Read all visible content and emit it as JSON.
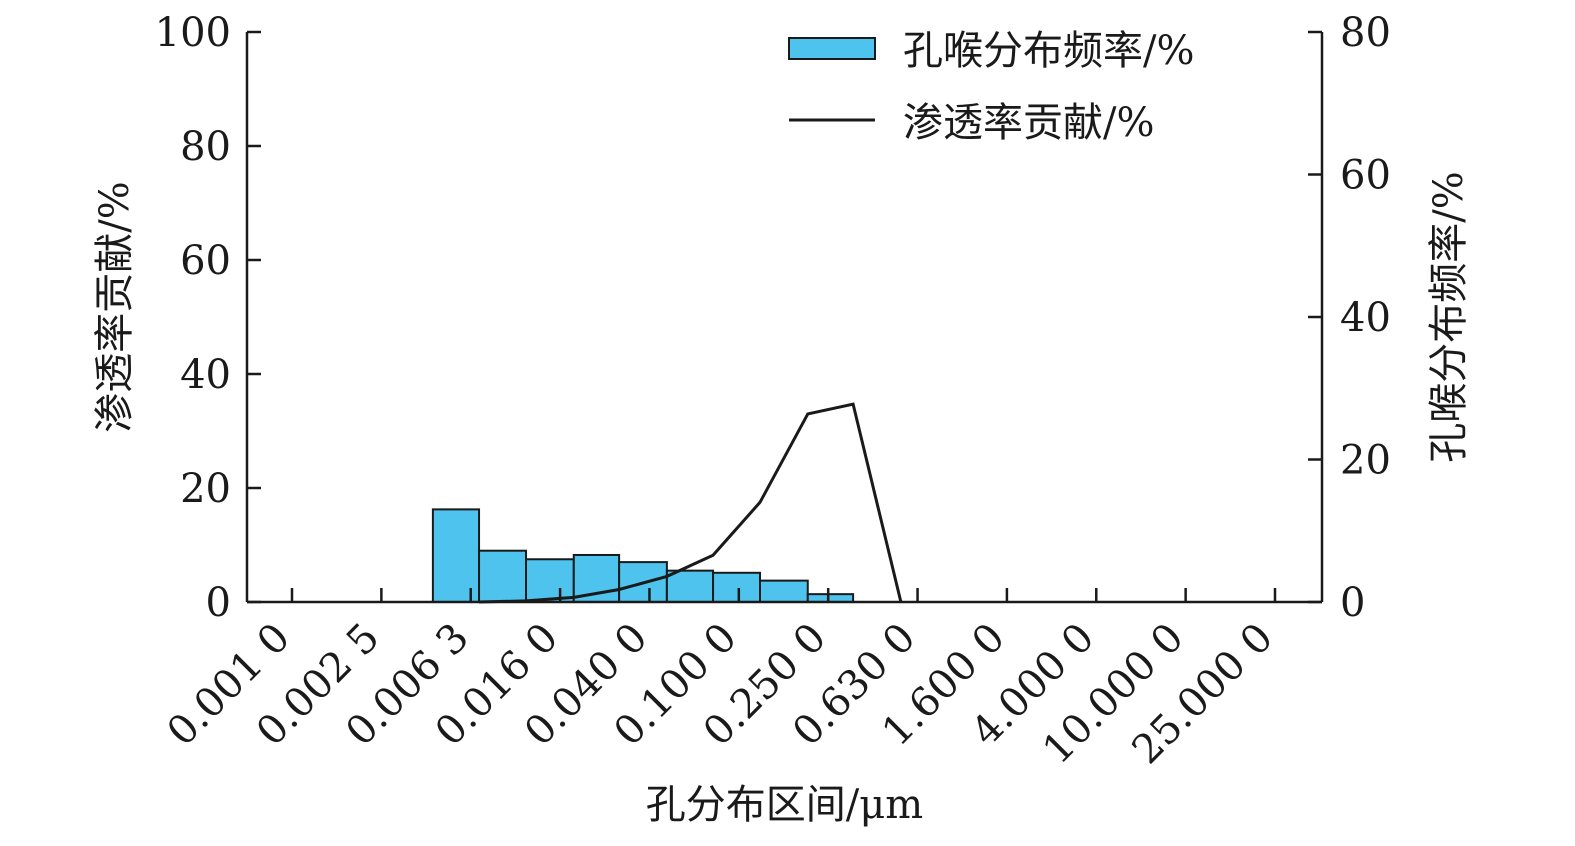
{
  "chart_data": {
    "type": "bar",
    "title": "",
    "xlabel": "孔分布区间/μm",
    "ylabel_left": "渗透率贡献/%",
    "ylabel_right": "孔喉分布频率/%",
    "categories": [
      "0.001 0",
      "0.002 5",
      "0.006 3",
      "0.016 0",
      "0.040 0",
      "0.100 0",
      "0.250 0",
      "0.630 0",
      "1.600 0",
      "4.000 0",
      "10.000 0",
      "25.000 0"
    ],
    "ylim_left": [
      0,
      100
    ],
    "yticks_left": [
      0,
      20,
      40,
      60,
      80,
      100
    ],
    "ylim_right": [
      0,
      80
    ],
    "yticks_right": [
      0,
      20,
      40,
      60,
      80
    ],
    "grid": false,
    "legend_position": "top-right",
    "series": [
      {
        "name": "孔喉分布频率/%",
        "type": "bar",
        "axis": "right",
        "color": "#4dc3ee",
        "bins": [
          {
            "from": 0.004,
            "to": 0.0063,
            "value": 13.0
          },
          {
            "from": 0.0063,
            "to": 0.01,
            "value": 7.2
          },
          {
            "from": 0.01,
            "to": 0.016,
            "value": 6.0
          },
          {
            "from": 0.016,
            "to": 0.025,
            "value": 6.6
          },
          {
            "from": 0.025,
            "to": 0.04,
            "value": 5.6
          },
          {
            "from": 0.04,
            "to": 0.063,
            "value": 4.4
          },
          {
            "from": 0.063,
            "to": 0.1,
            "value": 4.1
          },
          {
            "from": 0.1,
            "to": 0.16,
            "value": 3.0
          },
          {
            "from": 0.16,
            "to": 0.25,
            "value": 1.1
          }
        ]
      },
      {
        "name": "渗透率贡献/%",
        "type": "line",
        "axis": "left",
        "color": "#1a1a1a",
        "points": [
          {
            "x": 0.0063,
            "y": 0
          },
          {
            "x": 0.01,
            "y": 0.2
          },
          {
            "x": 0.016,
            "y": 0.8
          },
          {
            "x": 0.025,
            "y": 2.2
          },
          {
            "x": 0.04,
            "y": 4.5
          },
          {
            "x": 0.063,
            "y": 8.2
          },
          {
            "x": 0.1,
            "y": 17.5
          },
          {
            "x": 0.16,
            "y": 33.0
          },
          {
            "x": 0.25,
            "y": 34.7
          },
          {
            "x": 0.4,
            "y": 0
          }
        ]
      }
    ]
  }
}
